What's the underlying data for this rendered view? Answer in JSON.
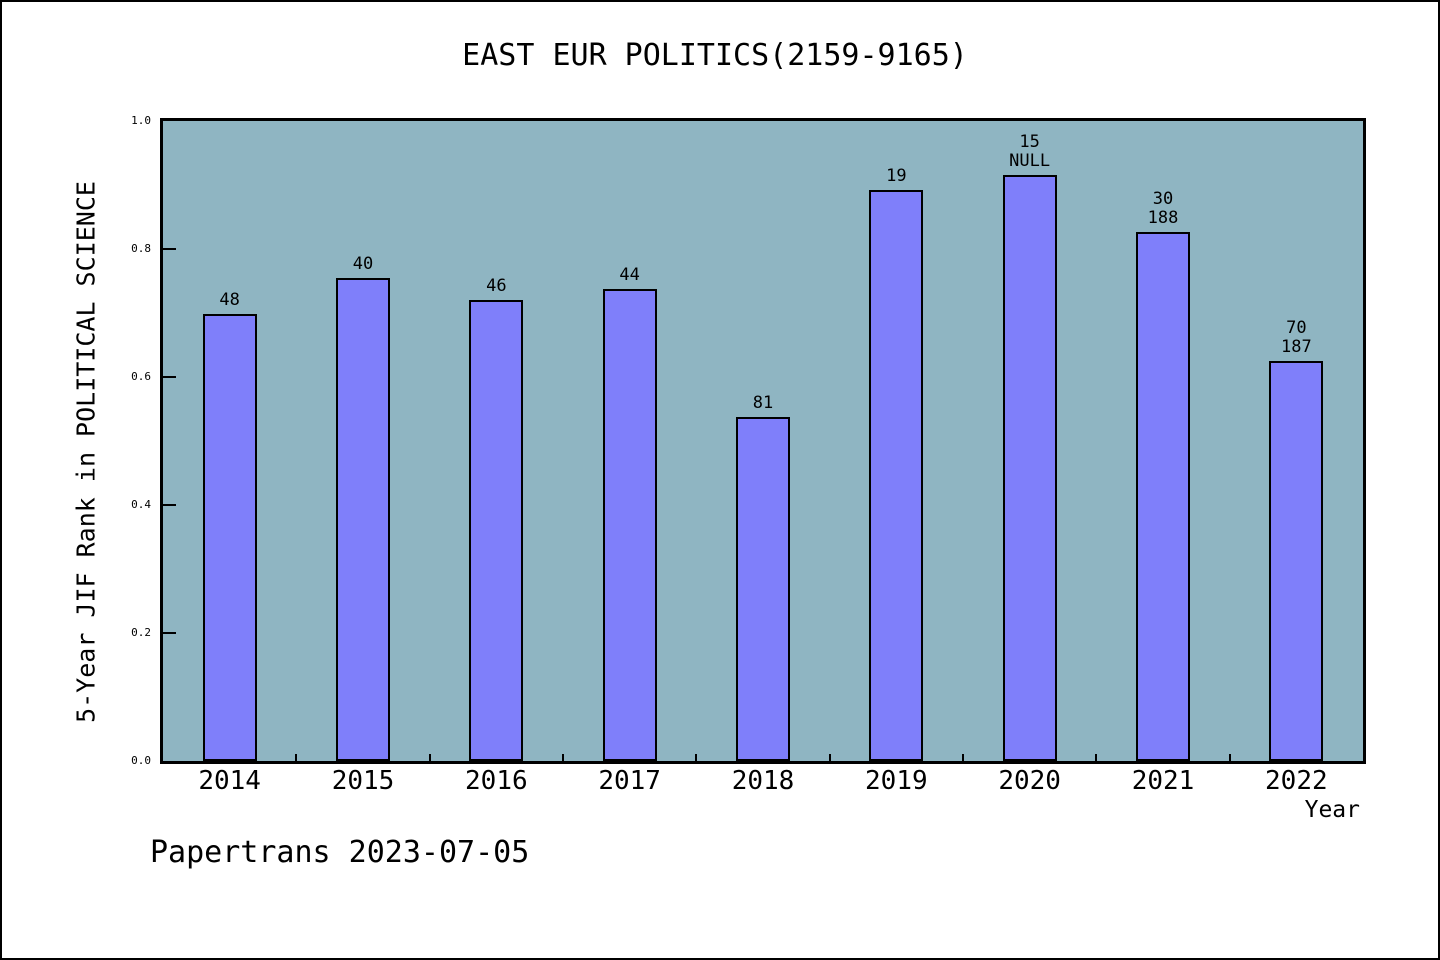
{
  "page": {
    "footer": "Papertrans 2023-07-05"
  },
  "chart_data": {
    "type": "bar",
    "title": "EAST EUR POLITICS(2159-9165)",
    "xlabel": "Year",
    "ylabel": "5-Year JIF Rank in POLITICAL SCIENCE",
    "ylim": [
      0.0,
      1.0
    ],
    "yticks": [
      "0.0",
      "0.2",
      "0.4",
      "0.6",
      "0.8",
      "1.0"
    ],
    "grid": false,
    "legend_position": "none",
    "plot_bg_color": "#8FB5C2",
    "bar_fill_color": "#7F7FFA",
    "bar_edge_color": "#000000",
    "categories": [
      "2014",
      "2015",
      "2016",
      "2017",
      "2018",
      "2019",
      "2020",
      "2021",
      "2022"
    ],
    "values": [
      0.699,
      0.754,
      0.72,
      0.738,
      0.537,
      0.892,
      0.916,
      0.827,
      0.625
    ],
    "bar_labels": [
      [
        "48"
      ],
      [
        "40"
      ],
      [
        "46"
      ],
      [
        "44"
      ],
      [
        "81"
      ],
      [
        "19"
      ],
      [
        "15",
        "NULL"
      ],
      [
        "30",
        "188"
      ],
      [
        "70",
        "187"
      ]
    ]
  }
}
